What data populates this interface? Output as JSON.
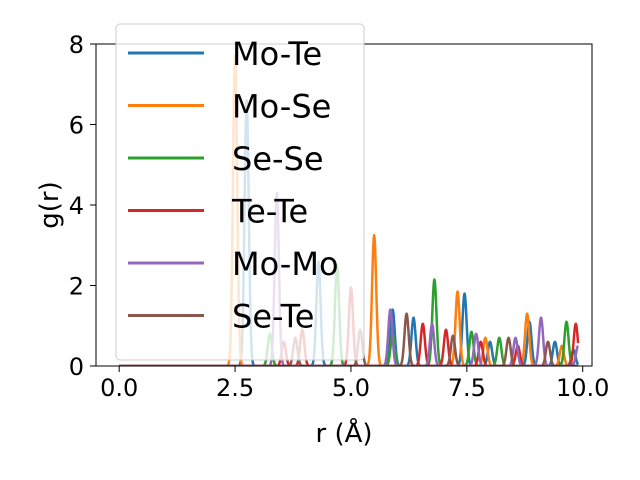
{
  "chart_data": {
    "type": "line",
    "title": "",
    "xlabel": "r (Å)",
    "ylabel": "g(r)",
    "xlim": [
      -0.5,
      10.2
    ],
    "ylim": [
      0,
      8
    ],
    "xticks": [
      0.0,
      2.5,
      5.0,
      7.5,
      10.0
    ],
    "xtick_labels": [
      "0.0",
      "2.5",
      "5.0",
      "7.5",
      "10.0"
    ],
    "yticks": [
      0,
      2,
      4,
      6,
      8
    ],
    "ytick_labels": [
      "0",
      "2",
      "4",
      "6",
      "8"
    ],
    "grid": false,
    "legend_position": "upper-left",
    "series": [
      {
        "name": "Mo-Te",
        "color": "#1f77b4",
        "peaks": [
          [
            2.75,
            6.6
          ],
          [
            4.3,
            2.6
          ],
          [
            5.9,
            1.4
          ],
          [
            6.35,
            1.2
          ],
          [
            7.45,
            1.8
          ],
          [
            8.0,
            0.6
          ],
          [
            8.85,
            1.1
          ],
          [
            9.4,
            0.6
          ],
          [
            9.8,
            0.4
          ]
        ]
      },
      {
        "name": "Mo-Se",
        "color": "#ff7f0e",
        "peaks": [
          [
            2.5,
            7.7
          ],
          [
            5.5,
            3.25
          ],
          [
            7.3,
            1.85
          ],
          [
            7.9,
            0.7
          ],
          [
            8.8,
            1.3
          ],
          [
            9.55,
            0.5
          ]
        ]
      },
      {
        "name": "Se-Se",
        "color": "#2ca02c",
        "peaks": [
          [
            3.25,
            0.8
          ],
          [
            4.7,
            2.5
          ],
          [
            5.9,
            0.8
          ],
          [
            6.8,
            2.15
          ],
          [
            7.6,
            0.85
          ],
          [
            8.2,
            0.7
          ],
          [
            9.65,
            1.1
          ]
        ]
      },
      {
        "name": "Te-Te",
        "color": "#d62728",
        "peaks": [
          [
            3.55,
            0.6
          ],
          [
            3.95,
            0.9
          ],
          [
            5.0,
            1.95
          ],
          [
            6.55,
            1.05
          ],
          [
            7.05,
            0.9
          ],
          [
            7.8,
            0.6
          ],
          [
            8.6,
            0.5
          ],
          [
            9.85,
            1.05
          ]
        ]
      },
      {
        "name": "Mo-Mo",
        "color": "#9467bd",
        "peaks": [
          [
            3.4,
            4.3
          ],
          [
            5.85,
            1.4
          ],
          [
            6.75,
            1.05
          ],
          [
            7.7,
            0.8
          ],
          [
            8.55,
            0.7
          ],
          [
            9.1,
            1.2
          ],
          [
            9.9,
            0.5
          ]
        ]
      },
      {
        "name": "Se-Te",
        "color": "#8c564b",
        "peaks": [
          [
            3.8,
            0.7
          ],
          [
            5.2,
            0.9
          ],
          [
            6.2,
            1.3
          ],
          [
            7.2,
            0.75
          ],
          [
            8.4,
            0.7
          ],
          [
            9.25,
            0.6
          ]
        ]
      }
    ]
  }
}
